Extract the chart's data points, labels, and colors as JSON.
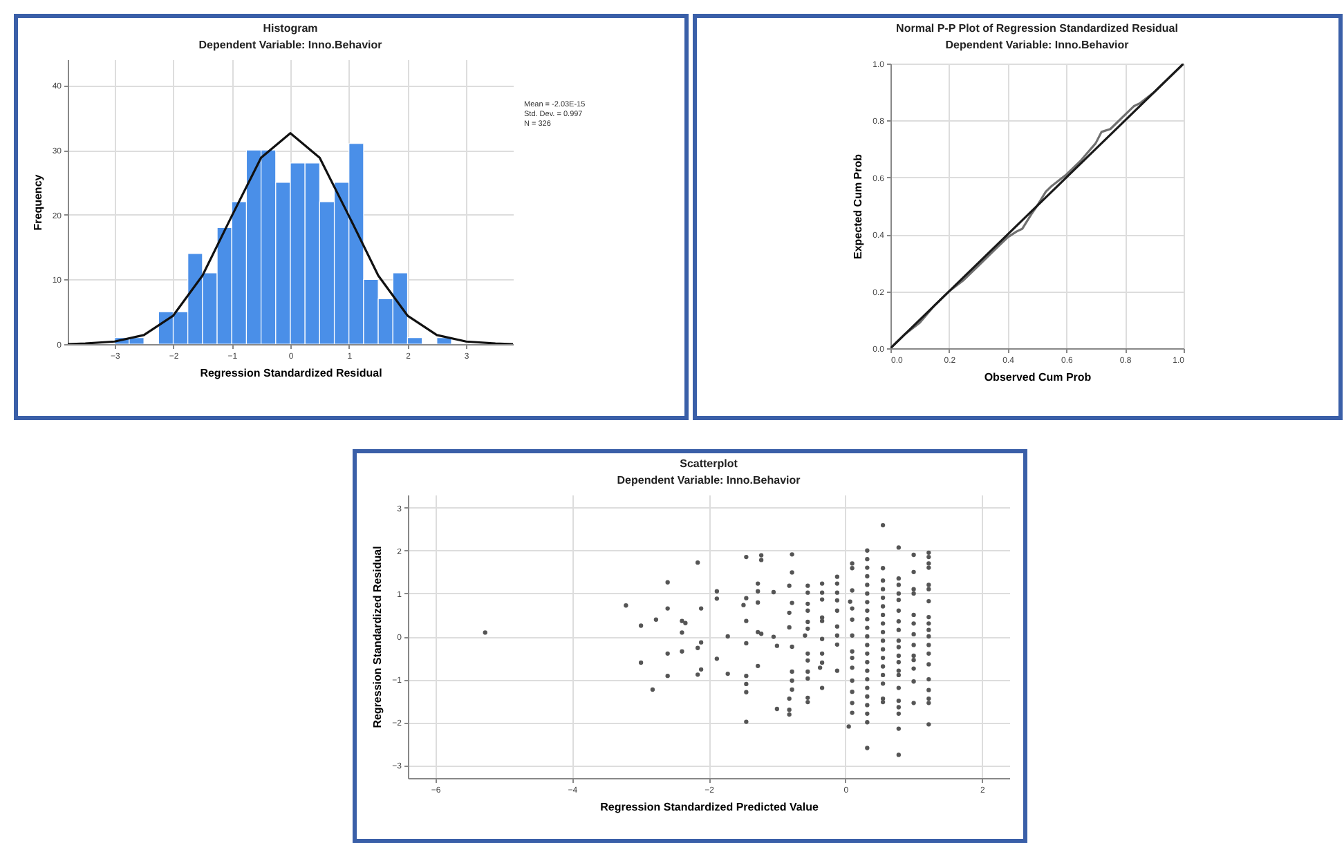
{
  "chart_data": [
    {
      "type": "histogram",
      "title": "Histogram",
      "subtitle": "Dependent Variable: Inno.Behavior",
      "xlabel": "Regression Standardized Residual",
      "ylabel": "Frequency",
      "bins": [
        -3,
        -2.75,
        -2.5,
        -2.25,
        -2,
        -1.75,
        -1.5,
        -1.25,
        -1,
        -0.75,
        -0.5,
        -0.25,
        0,
        0.25,
        0.5,
        0.75,
        1,
        1.25,
        1.5,
        1.75,
        2,
        2.25,
        2.5,
        2.75
      ],
      "values": [
        1,
        1,
        0,
        5,
        5,
        14,
        11,
        18,
        22,
        30,
        30,
        25,
        28,
        28,
        22,
        25,
        31,
        10,
        7,
        11,
        1,
        0,
        1
      ],
      "color": "#4a8fe8",
      "series": [
        {
          "type": "line",
          "color": "#111111",
          "x": [
            -3.8,
            -3.5,
            -3,
            -2.5,
            -2,
            -1.5,
            -1,
            -0.5,
            0,
            0.5,
            1,
            1.5,
            2,
            2.5,
            3,
            3.5,
            3.8
          ],
          "values": [
            0,
            0.1,
            0.4,
            1.4,
            4.4,
            10.6,
            19.8,
            28.8,
            32.6,
            28.8,
            19.8,
            10.6,
            4.4,
            1.4,
            0.4,
            0.1,
            0
          ]
        }
      ],
      "xlim": [
        -3.8,
        3.8
      ],
      "ylim": [
        0,
        44
      ],
      "xticks": [
        -3,
        -2,
        -1,
        0,
        1,
        2,
        3
      ],
      "yticks": [
        0,
        10,
        20,
        30,
        40
      ],
      "grid": true,
      "annotations": [
        "Mean = -2.03E-15",
        "Std. Dev. = 0.997",
        "N = 326"
      ]
    },
    {
      "type": "line",
      "title": "Normal P-P Plot of Regression Standardized Residual",
      "subtitle": "Dependent Variable: Inno.Behavior",
      "xlabel": "Observed Cum Prob",
      "ylabel": "Expected Cum Prob",
      "series": [
        {
          "color": "#707070",
          "x": [
            0,
            0.05,
            0.1,
            0.15,
            0.2,
            0.25,
            0.3,
            0.35,
            0.4,
            0.43,
            0.45,
            0.48,
            0.5,
            0.53,
            0.55,
            0.6,
            0.65,
            0.7,
            0.72,
            0.75,
            0.8,
            0.83,
            0.85,
            0.9,
            0.95,
            1
          ],
          "values": [
            0,
            0.05,
            0.09,
            0.15,
            0.2,
            0.24,
            0.29,
            0.34,
            0.39,
            0.41,
            0.42,
            0.47,
            0.5,
            0.55,
            0.57,
            0.61,
            0.66,
            0.72,
            0.76,
            0.77,
            0.82,
            0.85,
            0.86,
            0.9,
            0.95,
            1
          ]
        },
        {
          "color": "#1a1a1a",
          "x": [
            0,
            1
          ],
          "values": [
            0,
            1
          ]
        }
      ],
      "xlim": [
        0,
        1
      ],
      "ylim": [
        0,
        1
      ],
      "xticks": [
        {
          "value": 0,
          "label": "0.0"
        },
        0.2,
        0.4,
        0.6,
        0.8,
        {
          "value": 1,
          "label": "1.0"
        }
      ],
      "yticks": [
        {
          "value": 0,
          "label": "0.0"
        },
        0.2,
        0.4,
        0.6,
        0.8,
        {
          "value": 1,
          "label": "1.0"
        }
      ],
      "grid": true
    },
    {
      "type": "scatter",
      "title": "Scatterplot",
      "subtitle": "Dependent Variable: Inno.Behavior",
      "xlabel": "Regression Standardized Predicted Value",
      "ylabel": "Regression Standardized Residual",
      "marker": "circle",
      "series": [
        {
          "color": "#555555",
          "x": [
            -5.27,
            -3.21,
            -2.99,
            -2.99,
            -2.82,
            -2.77,
            -2.6,
            -2.6,
            -2.6,
            -2.6,
            -2.39,
            -2.34,
            -2.39,
            -2.39,
            -2.16,
            -2.16,
            -2.16,
            -2.11,
            -2.11,
            -2.11,
            -1.88,
            -1.88,
            -1.88,
            -1.72,
            -1.72,
            -1.45,
            -1.45,
            -1.49,
            -1.45,
            -1.45,
            -1.45,
            -1.45,
            -1.45,
            -1.45,
            -1.23,
            -1.23,
            -1.28,
            -1.28,
            -1.28,
            -1.28,
            -1.23,
            -1.28,
            -1.05,
            -1.05,
            -1,
            -1,
            -0.78,
            -0.78,
            -0.82,
            -0.78,
            -0.82,
            -0.82,
            -0.78,
            -0.78,
            -0.78,
            -0.78,
            -0.82,
            -0.82,
            -0.82,
            -0.55,
            -0.55,
            -0.55,
            -0.55,
            -0.55,
            -0.55,
            -0.59,
            -0.55,
            -0.55,
            -0.55,
            -0.55,
            -0.55,
            -0.55,
            -0.34,
            -0.34,
            -0.34,
            -0.34,
            -0.34,
            -0.34,
            -0.34,
            -0.34,
            -0.37,
            -0.34,
            -0.12,
            -0.12,
            -0.12,
            -0.12,
            -0.12,
            -0.12,
            -0.12,
            -0.12,
            -0.12,
            0.1,
            0.1,
            0.1,
            0.07,
            0.1,
            0.1,
            0.1,
            0.1,
            0.1,
            0.1,
            0.1,
            0.1,
            0.1,
            0.1,
            0.05,
            0.32,
            0.32,
            0.32,
            0.32,
            0.32,
            0.32,
            0.32,
            0.32,
            0.32,
            0.32,
            0.32,
            0.32,
            0.32,
            0.32,
            0.32,
            0.32,
            0.32,
            0.32,
            0.32,
            0.32,
            0.32,
            0.32,
            0.55,
            0.55,
            0.55,
            0.55,
            0.55,
            0.55,
            0.55,
            0.55,
            0.55,
            0.55,
            0.55,
            0.55,
            0.55,
            0.55,
            0.55,
            0.55,
            0.55,
            0.78,
            0.78,
            0.78,
            0.78,
            0.78,
            0.78,
            0.78,
            0.78,
            0.78,
            0.78,
            0.78,
            0.78,
            0.78,
            0.78,
            0.78,
            0.78,
            0.78,
            0.78,
            0.78,
            0.78,
            1,
            1,
            1,
            1,
            1,
            1,
            1,
            1,
            1,
            1,
            1,
            1,
            1,
            1.22,
            1.22,
            1.22,
            1.22,
            1.22,
            1.22,
            1.22,
            1.22,
            1.22,
            1.22,
            1.22,
            1.22,
            1.22,
            1.22,
            1.22,
            1.22,
            1.22,
            1.22,
            1.22
          ],
          "values": [
            0.09,
            0.72,
            0.25,
            -0.61,
            -1.24,
            0.39,
            1.26,
            0.65,
            -0.4,
            -0.92,
            0.36,
            0.31,
            0.09,
            -0.35,
            1.72,
            -0.27,
            -0.89,
            0.65,
            -0.14,
            -0.77,
            1.05,
            0.88,
            -0.52,
            0,
            -0.87,
            1.85,
            0.89,
            0.73,
            0.36,
            -0.16,
            -0.92,
            -1.11,
            -1.3,
            -1.99,
            1.89,
            1.78,
            1.23,
            1.05,
            0.79,
            0.1,
            0.06,
            -0.69,
            1.03,
            -0.01,
            -0.22,
            -1.69,
            1.91,
            1.49,
            1.18,
            0.78,
            0.55,
            0.21,
            -0.24,
            -0.82,
            -1.03,
            -1.24,
            -1.45,
            -1.71,
            -1.82,
            1.18,
            1.02,
            0.76,
            0.6,
            0.34,
            0.18,
            0.02,
            -0.4,
            -0.56,
            -0.82,
            -0.98,
            -1.43,
            -1.53,
            1.23,
            1.02,
            0.86,
            0.44,
            0.36,
            -0.06,
            -0.4,
            -0.61,
            -0.73,
            -1.2,
            1.39,
            1.23,
            1.02,
            0.84,
            0.6,
            0.23,
            0.02,
            -0.19,
            -0.8,
            1.7,
            1.59,
            1.07,
            0.81,
            0.65,
            0.39,
            0.02,
            -0.35,
            -0.5,
            -0.73,
            -1.03,
            -1.29,
            -1.55,
            -1.78,
            -2.1,
            2,
            1.8,
            1.6,
            1.4,
            1.2,
            1,
            0.8,
            0.6,
            0.4,
            0.2,
            0,
            -0.2,
            -0.4,
            -0.6,
            -0.8,
            -1,
            -1.2,
            -1.4,
            -1.6,
            -1.8,
            -2,
            -2.6,
            2.59,
            1.59,
            1.3,
            1.1,
            0.9,
            0.7,
            0.5,
            0.3,
            0.1,
            -0.1,
            -0.3,
            -0.5,
            -0.7,
            -0.9,
            -1.1,
            -1.45,
            -1.53,
            2.07,
            1.35,
            1.2,
            1,
            0.85,
            0.6,
            0.35,
            0.15,
            -0.1,
            -0.25,
            -0.45,
            -0.6,
            -0.8,
            -0.9,
            -1.2,
            -1.5,
            -1.65,
            -1.8,
            -2.15,
            -2.76,
            1.9,
            1.5,
            1.1,
            1,
            0.5,
            0.3,
            0.05,
            -0.2,
            -0.45,
            -0.55,
            -0.75,
            -1.05,
            -1.55,
            1.95,
            1.85,
            1.7,
            1.6,
            1.2,
            1.1,
            0.82,
            0.45,
            0.3,
            0.15,
            0,
            -0.2,
            -0.4,
            -0.65,
            -1,
            -1.25,
            -1.45,
            -1.55,
            -2.05
          ]
        }
      ],
      "xlim": [
        -6.4,
        2.4
      ],
      "ylim": [
        -3.3,
        3.3
      ],
      "xticks": [
        -6,
        -4,
        -2,
        0,
        2
      ],
      "yticks": [
        -3,
        -2,
        -1,
        0,
        1,
        2,
        3
      ],
      "grid": true
    }
  ]
}
